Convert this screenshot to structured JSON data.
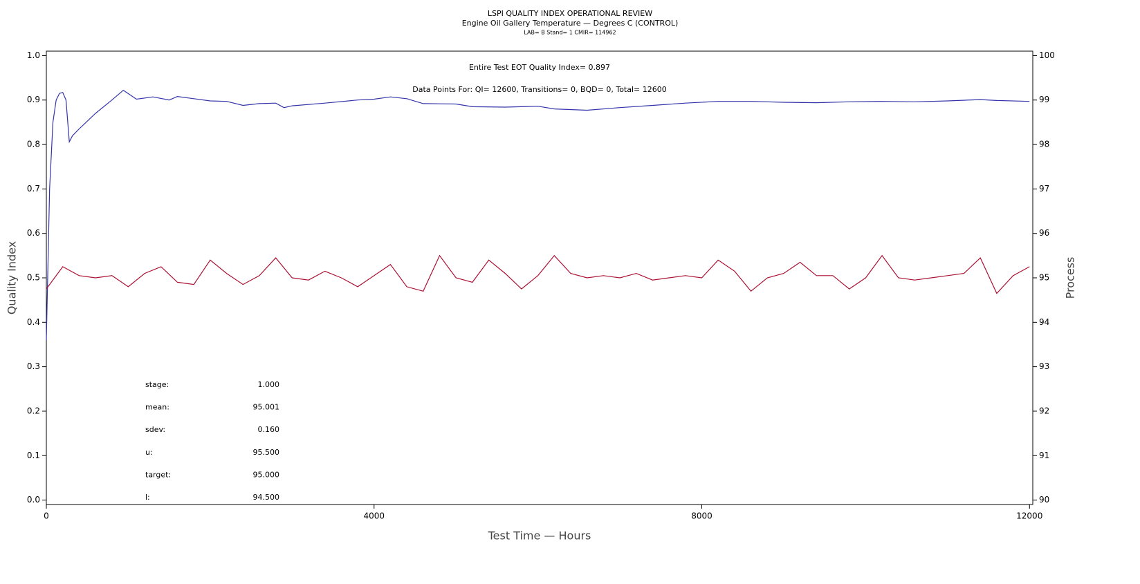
{
  "chart_data": {
    "type": "line",
    "title": "LSPI QUALITY INDEX OPERATIONAL REVIEW",
    "subtitle": "Engine Oil Gallery Temperature — Degrees C (CONTROL)",
    "subtitle2": "LAB= B Stand= 1 CMIR= 114962",
    "annotations": [
      "Entire Test EOT Quality Index=   0.897",
      "Data Points For: QI= 12600, Transitions=      0, BQD=      0, Total= 12600"
    ],
    "stats": [
      {
        "label": "stage:",
        "value": "1.000"
      },
      {
        "label": "mean:",
        "value": "95.001"
      },
      {
        "label": "sdev:",
        "value": "0.160"
      },
      {
        "label": "u:",
        "value": "95.500"
      },
      {
        "label": "target:",
        "value": "95.000"
      },
      {
        "label": "l:",
        "value": "94.500"
      }
    ],
    "x_label": "Test Time — Hours",
    "y_label": "Quality Index",
    "y2_label": "Process",
    "xlim": [
      0,
      12040
    ],
    "xticks": [
      0,
      4000,
      8000,
      12000
    ],
    "ylim": [
      -0.01,
      1.01
    ],
    "yticks": [
      {
        "value": 0,
        "label": "0.0"
      },
      {
        "value": 0.1,
        "label": "0.1"
      },
      {
        "value": 0.2,
        "label": "0.2"
      },
      {
        "value": 0.3,
        "label": "0.3"
      },
      {
        "value": 0.4,
        "label": "0.4"
      },
      {
        "value": 0.5,
        "label": "0.5"
      },
      {
        "value": 0.6,
        "label": "0.6"
      },
      {
        "value": 0.7,
        "label": "0.7"
      },
      {
        "value": 0.8,
        "label": "0.8"
      },
      {
        "value": 0.9,
        "label": "0.9"
      },
      {
        "value": 1,
        "label": "1.0"
      }
    ],
    "y2lim": [
      89.9,
      100.1
    ],
    "y2ticks": [
      90,
      91,
      92,
      93,
      94,
      95,
      96,
      97,
      98,
      99,
      100
    ],
    "series": [
      {
        "color": "#3333aa",
        "axis": "y",
        "x": [
          0,
          40,
          80,
          120,
          160,
          200,
          240,
          280,
          320,
          400,
          600,
          800,
          940,
          1100,
          1300,
          1500,
          1600,
          1800,
          2000,
          2200,
          2400,
          2600,
          2800,
          2900,
          3000,
          3400,
          3800,
          4000,
          4200,
          4400,
          4600,
          5000,
          5200,
          5600,
          6000,
          6200,
          6600,
          7000,
          7400,
          7800,
          8200,
          8600,
          9000,
          9400,
          9800,
          10200,
          10600,
          11000,
          11400,
          11600,
          12000
        ],
        "values": [
          0.36,
          0.7,
          0.85,
          0.9,
          0.915,
          0.917,
          0.9,
          0.806,
          0.82,
          0.835,
          0.87,
          0.9,
          0.922,
          0.902,
          0.907,
          0.9,
          0.908,
          0.903,
          0.898,
          0.897,
          0.888,
          0.892,
          0.893,
          0.883,
          0.887,
          0.893,
          0.9,
          0.902,
          0.907,
          0.903,
          0.892,
          0.891,
          0.885,
          0.884,
          0.886,
          0.88,
          0.877,
          0.883,
          0.888,
          0.893,
          0.897,
          0.897,
          0.895,
          0.894,
          0.896,
          0.897,
          0.896,
          0.898,
          0.901,
          0.899,
          0.897
        ]
      },
      {
        "color": "#aa1133",
        "axis": "y2",
        "x": [
          0,
          200,
          400,
          600,
          800,
          1000,
          1200,
          1400,
          1600,
          1800,
          2000,
          2200,
          2400,
          2600,
          2800,
          3000,
          3200,
          3400,
          3600,
          3800,
          4000,
          4200,
          4400,
          4600,
          4800,
          5000,
          5200,
          5400,
          5600,
          5800,
          6000,
          6200,
          6400,
          6600,
          6800,
          7000,
          7200,
          7400,
          7600,
          7800,
          8000,
          8200,
          8400,
          8600,
          8800,
          9000,
          9200,
          9400,
          9600,
          9800,
          10000,
          10200,
          10400,
          10600,
          10800,
          11000,
          11200,
          11400,
          11600,
          11800,
          12000
        ],
        "values": [
          94.75,
          95.25,
          95.05,
          95.0,
          95.05,
          94.8,
          95.1,
          95.25,
          94.9,
          94.85,
          95.4,
          95.1,
          94.85,
          95.05,
          95.45,
          95.0,
          94.95,
          95.15,
          95.0,
          94.8,
          95.05,
          95.3,
          94.8,
          94.7,
          95.5,
          95.0,
          94.9,
          95.4,
          95.1,
          94.75,
          95.05,
          95.5,
          95.1,
          95.0,
          95.05,
          95.0,
          95.1,
          94.95,
          95.0,
          95.05,
          95.0,
          95.4,
          95.15,
          94.7,
          95.0,
          95.1,
          95.35,
          95.05,
          95.05,
          94.75,
          95.0,
          95.5,
          95.0,
          94.95,
          95.0,
          95.05,
          95.1,
          95.45,
          94.65,
          95.05,
          95.25
        ]
      }
    ]
  }
}
